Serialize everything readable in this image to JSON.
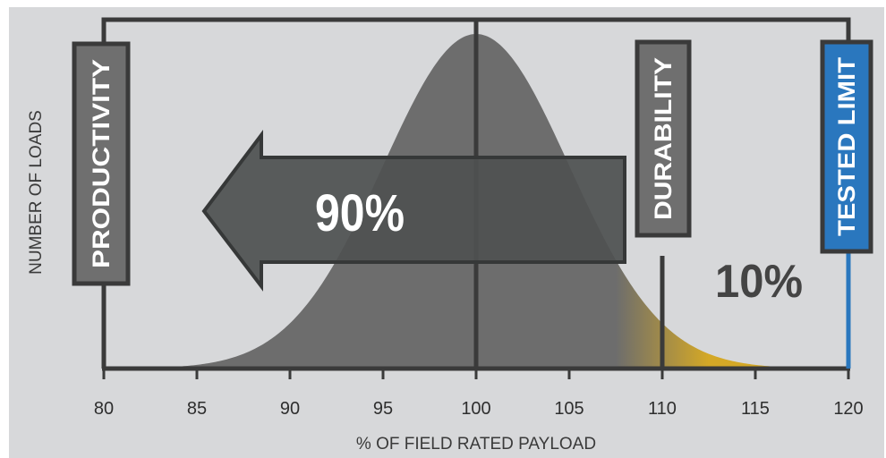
{
  "chart_data": {
    "type": "area",
    "xlabel": "% OF FIELD RATED PAYLOAD",
    "ylabel": "NUMBER OF LOADS",
    "xlim": [
      80,
      120
    ],
    "x_ticks": [
      80,
      85,
      90,
      95,
      100,
      105,
      110,
      115,
      120
    ],
    "distribution": {
      "shape": "normal",
      "mean": 100,
      "std_dev": 5,
      "x_range": [
        82,
        118
      ]
    },
    "markers": [
      {
        "label": "PRODUCTIVITY",
        "x": 80
      },
      {
        "label": "DURABILITY",
        "x": 110
      },
      {
        "label": "TESTED LIMIT",
        "x": 120
      }
    ],
    "annotations": [
      {
        "text": "90%",
        "direction": "left"
      },
      {
        "text": "10%"
      }
    ]
  },
  "colors": {
    "background": "#d7d8da",
    "frame": "#3a3a3a",
    "curve": "#6d6d6d",
    "tail": "#d4a826",
    "label_box": "#6f6f6f",
    "label_border": "#3a3a3a",
    "tested_limit": "#2a77be",
    "arrow": "#4f5151",
    "text_dark": "#3a3a3a"
  }
}
